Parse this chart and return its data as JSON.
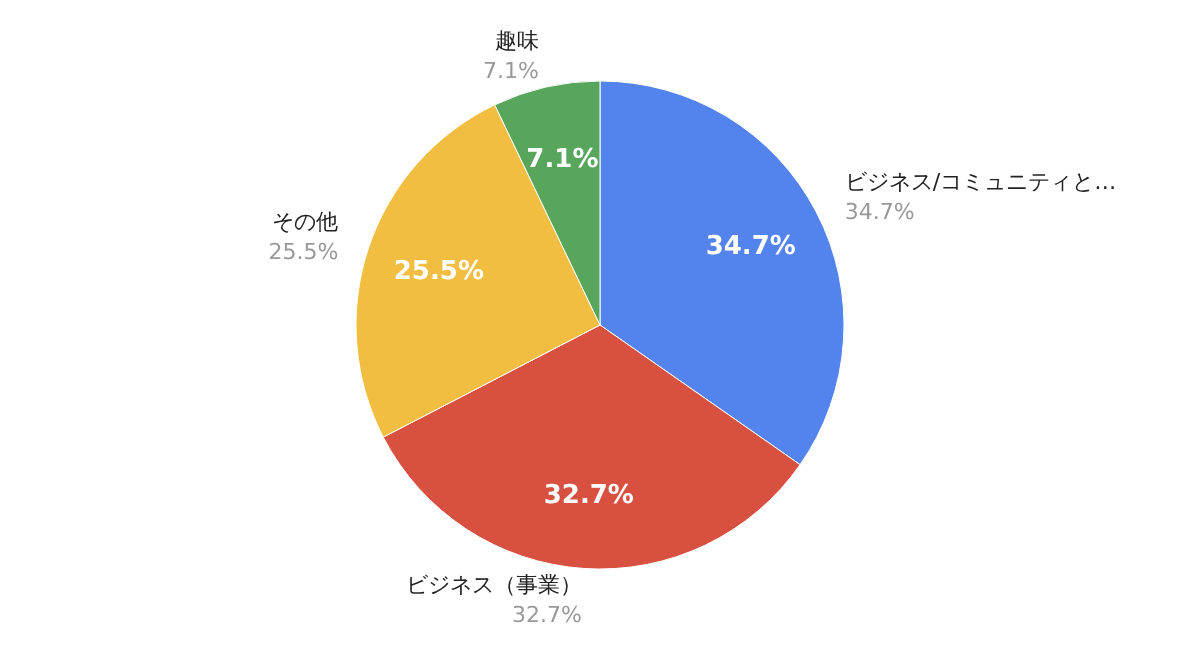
{
  "chart_data": {
    "type": "pie",
    "categories": [
      "ビジネス/コミュニティと…",
      "ビジネス（事業）",
      "その他",
      "趣味"
    ],
    "values": [
      34.7,
      32.7,
      25.5,
      7.1
    ],
    "value_labels": [
      "34.7%",
      "32.7%",
      "25.5%",
      "7.1%"
    ],
    "colors": [
      "#5383ec",
      "#d85140",
      "#f1be42",
      "#58a55c"
    ]
  }
}
